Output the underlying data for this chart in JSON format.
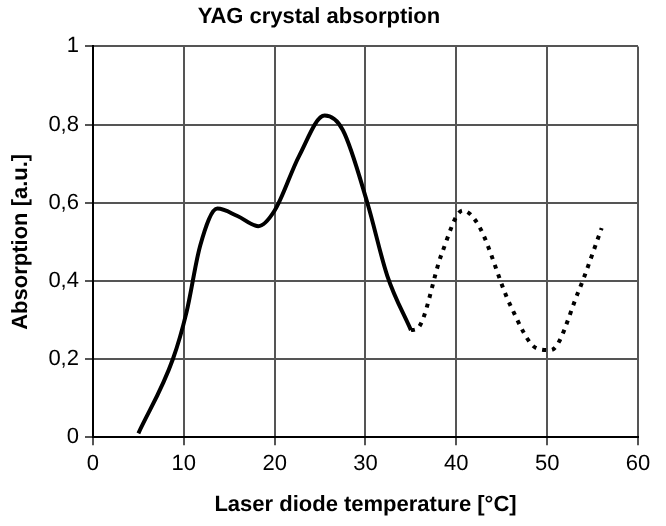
{
  "chart_data": {
    "type": "line",
    "title": "YAG crystal absorption",
    "xlabel": "Laser diode temperature [°C]",
    "ylabel": "Absorption [a.u.]",
    "series": [
      {
        "color": "#000000",
        "line_style": "solid",
        "x": [
          5,
          8.8,
          10.3,
          11.8,
          13.7,
          15.9,
          18.2,
          20,
          22.7,
          25.5,
          27.5,
          30.2,
          32.4,
          35
        ],
        "values": [
          0.01,
          0.2,
          0.32,
          0.49,
          0.585,
          0.566,
          0.54,
          0.58,
          0.72,
          0.823,
          0.786,
          0.6,
          0.413,
          0.274
        ]
      },
      {
        "color": "#000000",
        "line_style": "dotted",
        "x": [
          35,
          35.8,
          38.4,
          40.7,
          42.5,
          45.9,
          48.9,
          50.4,
          53.4,
          56
        ],
        "values": [
          0.274,
          0.28,
          0.47,
          0.58,
          0.54,
          0.34,
          0.227,
          0.223,
          0.37,
          0.535
        ]
      }
    ],
    "xlim": [
      0,
      60
    ],
    "xticks": [
      0,
      10,
      20,
      30,
      40,
      50,
      60
    ],
    "ylim": [
      0,
      1
    ],
    "yticks": [
      0,
      {
        "value": 0.2,
        "label": "0,2"
      },
      {
        "value": 0.4,
        "label": "0,4"
      },
      {
        "value": 0.6,
        "label": "0,6"
      },
      {
        "value": 0.8,
        "label": "0,8"
      },
      1
    ],
    "grid": true,
    "marker": "none",
    "legend": false
  }
}
